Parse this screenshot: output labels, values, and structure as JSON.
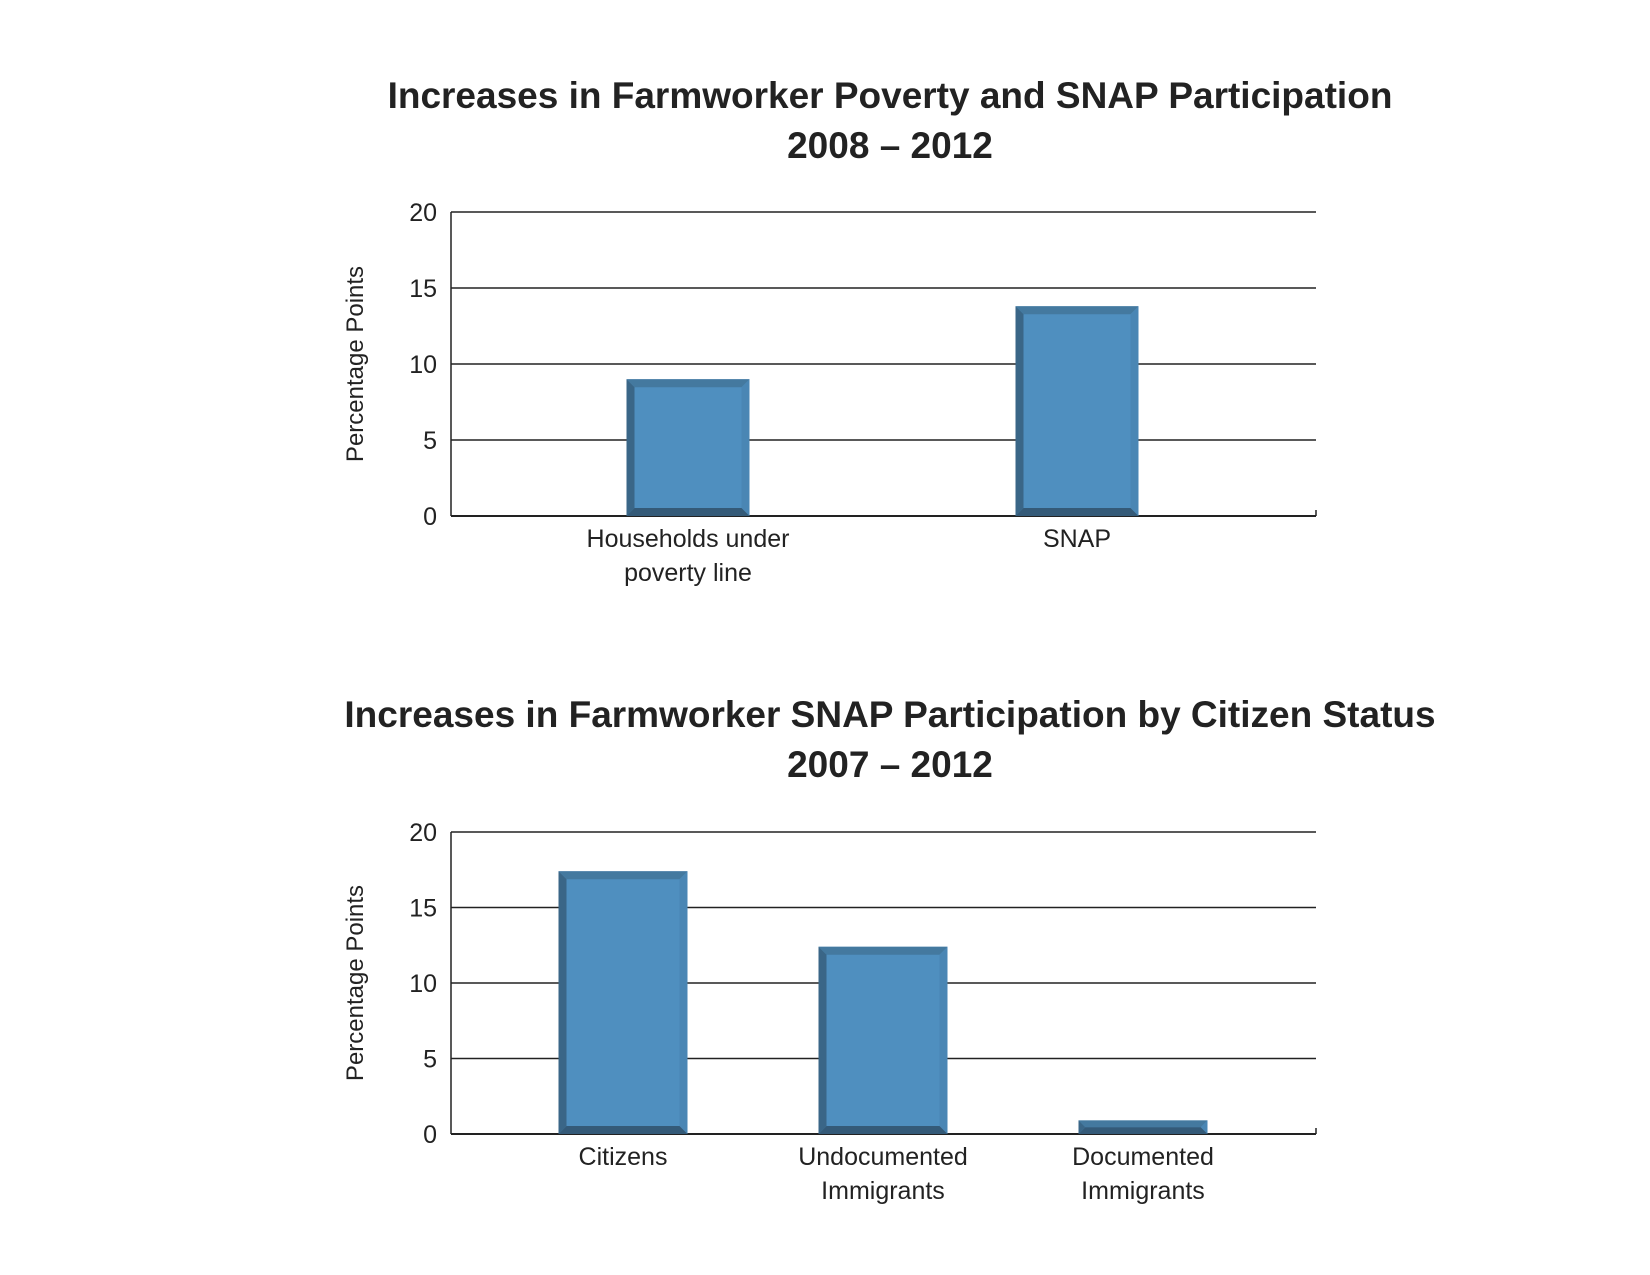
{
  "chart_data": [
    {
      "type": "bar",
      "title": "Increases in Farmworker Poverty and SNAP Participation",
      "subtitle": "2008 – 2012",
      "xlabel": "",
      "ylabel": "Percentage Points",
      "ylim": [
        0,
        20
      ],
      "yticks": [
        "0",
        "5",
        "10",
        "15",
        "20"
      ],
      "grid": true,
      "categories": [
        [
          "Households under",
          "poverty line"
        ],
        [
          "SNAP"
        ]
      ],
      "values": [
        9.0,
        13.8
      ],
      "color": "#4f8fbf"
    },
    {
      "type": "bar",
      "title": "Increases in Farmworker SNAP Participation by Citizen Status",
      "subtitle": "2007 – 2012",
      "xlabel": "",
      "ylabel": "Percentage Points",
      "ylim": [
        0,
        20
      ],
      "yticks": [
        "0",
        "5",
        "10",
        "15",
        "20"
      ],
      "grid": true,
      "categories": [
        [
          "Citizens"
        ],
        [
          "Undocumented",
          "Immigrants"
        ],
        [
          "Documented",
          "Immigrants"
        ]
      ],
      "values": [
        17.4,
        12.4,
        0.9
      ],
      "color": "#4f8fbf"
    }
  ]
}
